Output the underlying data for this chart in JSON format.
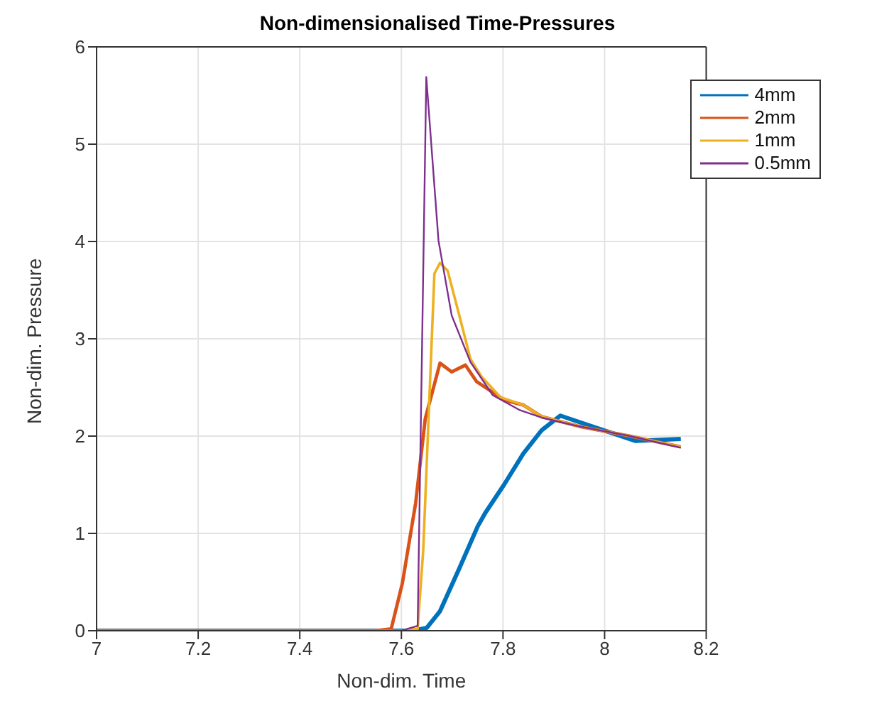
{
  "chart_data": {
    "type": "line",
    "title": "Non-dimensionalised Time-Pressures",
    "xlabel": "Non-dim. Time",
    "ylabel": "Non-dim. Pressure",
    "xlim": [
      7,
      8.2
    ],
    "xticks": [
      7,
      7.2,
      7.4,
      7.6,
      7.8,
      8,
      8.2
    ],
    "ylim": [
      0,
      6
    ],
    "yticks": [
      0,
      1,
      2,
      3,
      4,
      5,
      6
    ],
    "grid": true,
    "legend": "top right",
    "line_style": "solid",
    "marker": "none",
    "series": [
      {
        "name": "4mm",
        "color": "#0072bd",
        "x": [
          7,
          7.5,
          7.623,
          7.65,
          7.676,
          7.714,
          7.75,
          7.765,
          7.802,
          7.84,
          7.876,
          7.913,
          7.987,
          8.061,
          8.15
        ],
        "values": [
          0,
          0,
          0,
          0.03,
          0.2,
          0.64,
          1.07,
          1.21,
          1.5,
          1.82,
          2.06,
          2.21,
          2.08,
          1.95,
          1.97
        ]
      },
      {
        "name": "2mm",
        "color": "#d95319",
        "x": [
          7,
          7.55,
          7.58,
          7.602,
          7.628,
          7.647,
          7.676,
          7.699,
          7.726,
          7.748,
          7.803,
          7.84,
          7.876,
          7.95,
          8.05,
          8.15
        ],
        "values": [
          0,
          0,
          0.02,
          0.49,
          1.31,
          2.18,
          2.75,
          2.66,
          2.73,
          2.56,
          2.37,
          2.32,
          2.2,
          2.1,
          2.0,
          1.89
        ]
      },
      {
        "name": "1mm",
        "color": "#edb120",
        "x": [
          7,
          7.6,
          7.632,
          7.643,
          7.665,
          7.676,
          7.691,
          7.714,
          7.736,
          7.758,
          7.795,
          7.84,
          7.876,
          7.95,
          8.05,
          8.15
        ],
        "values": [
          0,
          0,
          0.02,
          0.83,
          3.67,
          3.78,
          3.7,
          3.24,
          2.79,
          2.61,
          2.4,
          2.32,
          2.2,
          2.1,
          2.0,
          1.89
        ]
      },
      {
        "name": "0.5mm",
        "color": "#7e2f8e",
        "x": [
          7,
          7.6,
          7.632,
          7.649,
          7.673,
          7.699,
          7.736,
          7.78,
          7.832,
          7.876,
          7.95,
          8.05,
          8.15
        ],
        "values": [
          0,
          0,
          0.05,
          5.69,
          4.01,
          3.24,
          2.76,
          2.42,
          2.27,
          2.19,
          2.1,
          2.0,
          1.88
        ]
      }
    ]
  }
}
